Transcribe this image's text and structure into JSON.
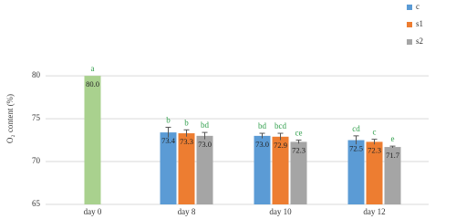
{
  "chart_data": {
    "type": "bar",
    "y_label": "O₂ content (%)",
    "categories": [
      "day 0",
      "day 8",
      "day 10",
      "day 12"
    ],
    "series": [
      {
        "color": "#a9d18e",
        "values": [
          80.0,
          null,
          null,
          null
        ],
        "value_labels": [
          "80.0",
          null,
          null,
          null
        ],
        "errors": [
          null,
          null,
          null,
          null
        ],
        "letters": [
          "a",
          null,
          null,
          null
        ]
      },
      {
        "name": "c",
        "color": "#5b9bd5",
        "values": [
          null,
          73.4,
          73.0,
          72.5
        ],
        "value_labels": [
          null,
          "73.4",
          "73.0",
          "72.5"
        ],
        "errors": [
          null,
          0.6,
          0.3,
          0.5
        ],
        "letters": [
          null,
          "b",
          "bd",
          "cd"
        ]
      },
      {
        "name": "s1",
        "color": "#ed7d31",
        "values": [
          null,
          73.3,
          72.9,
          72.3
        ],
        "value_labels": [
          null,
          "73.3",
          "72.9",
          "72.3"
        ],
        "errors": [
          null,
          0.4,
          0.4,
          0.3
        ],
        "letters": [
          null,
          "b",
          "bcd",
          "c"
        ]
      },
      {
        "name": "s2",
        "color": "#a5a5a5",
        "values": [
          null,
          73.0,
          72.3,
          71.7
        ],
        "value_labels": [
          null,
          "73.0",
          "72.3",
          "71.7"
        ],
        "errors": [
          null,
          0.4,
          0.2,
          0.1
        ],
        "letters": [
          null,
          "bd",
          "ce",
          "e"
        ]
      }
    ],
    "ylim": [
      65,
      88
    ],
    "yticks": [
      65,
      70,
      75,
      80
    ],
    "grid": true,
    "legend": "top-right"
  }
}
